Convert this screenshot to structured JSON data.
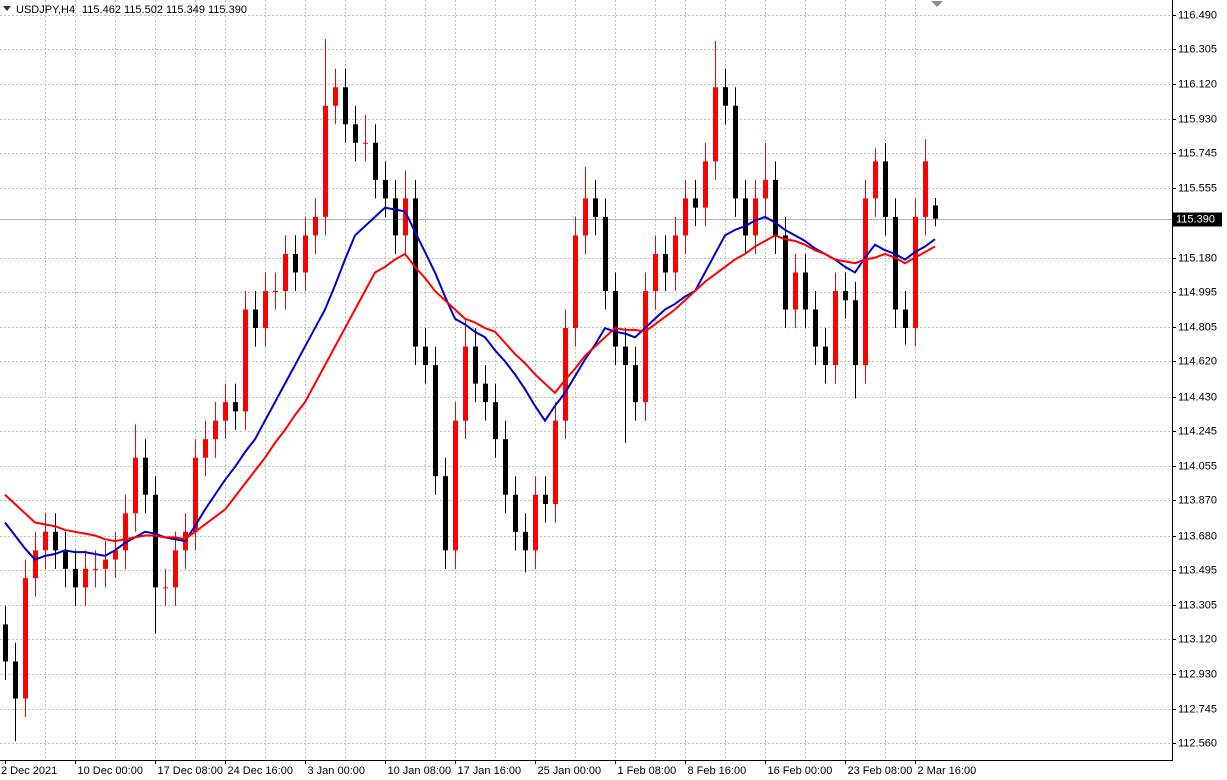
{
  "chart_data": {
    "type": "candlestick",
    "symbol": "USDJPY,H4",
    "header_values": [
      "115.462",
      "115.502",
      "115.349",
      "115.390"
    ],
    "up_color": "#ff0000",
    "down_color": "#000000",
    "ylim": [
      112.468,
      116.571
    ],
    "yticks": [
      {
        "value": 116.49,
        "label": "116.490"
      },
      116.305,
      {
        "value": 116.12,
        "label": "116.120"
      },
      {
        "value": 115.93,
        "label": "115.930"
      },
      115.745,
      115.555,
      {
        "value": 115.18,
        "label": "115.180"
      },
      114.995,
      114.805,
      {
        "value": 114.62,
        "label": "114.620"
      },
      {
        "value": 114.43,
        "label": "114.430"
      },
      114.245,
      114.055,
      {
        "value": 113.87,
        "label": "113.870"
      },
      {
        "value": 113.68,
        "label": "113.680"
      },
      113.495,
      113.305,
      {
        "value": 113.12,
        "label": "113.120"
      },
      {
        "value": 112.93,
        "label": "112.930"
      },
      112.745,
      {
        "value": 112.56,
        "label": "112.560"
      }
    ],
    "grid": true,
    "last_price": {
      "value": 115.39,
      "label": "115.390"
    },
    "categories": [
      "2 Dec 2021",
      null,
      null,
      null,
      null,
      null,
      null,
      "10 Dec 00:00",
      null,
      null,
      null,
      null,
      null,
      null,
      null,
      "17 Dec 08:00",
      null,
      null,
      null,
      null,
      null,
      null,
      "24 Dec 16:00",
      null,
      null,
      null,
      null,
      null,
      null,
      null,
      "3 Jan 00:00",
      null,
      null,
      null,
      null,
      null,
      null,
      null,
      "10 Jan 08:00",
      null,
      null,
      null,
      null,
      null,
      null,
      "17 Jan 16:00",
      null,
      null,
      null,
      null,
      null,
      null,
      null,
      "25 Jan 00:00",
      null,
      null,
      null,
      null,
      null,
      null,
      null,
      "1 Feb 08:00",
      null,
      null,
      null,
      null,
      null,
      null,
      "8 Feb 16:00",
      null,
      null,
      null,
      null,
      null,
      null,
      null,
      "16 Feb 00:00",
      null,
      null,
      null,
      null,
      null,
      null,
      null,
      "23 Feb 08:00",
      null,
      null,
      null,
      null,
      null,
      null,
      "2 Mar 16:00",
      null,
      null
    ],
    "ohlc": [
      [
        113.2,
        113.3,
        112.9,
        113.0
      ],
      [
        113.0,
        113.1,
        112.57,
        112.8
      ],
      [
        112.8,
        113.55,
        112.7,
        113.45
      ],
      [
        113.45,
        113.7,
        113.35,
        113.6
      ],
      [
        113.6,
        113.8,
        113.5,
        113.7
      ],
      [
        113.7,
        113.8,
        113.5,
        113.6
      ],
      [
        113.6,
        113.7,
        113.4,
        113.5
      ],
      [
        113.5,
        113.6,
        113.3,
        113.4
      ],
      [
        113.4,
        113.6,
        113.3,
        113.5
      ],
      [
        113.5,
        113.6,
        113.4,
        113.5
      ],
      [
        113.5,
        113.65,
        113.4,
        113.55
      ],
      [
        113.55,
        113.7,
        113.45,
        113.6
      ],
      [
        113.6,
        113.9,
        113.5,
        113.8
      ],
      [
        113.8,
        114.28,
        113.7,
        114.1
      ],
      [
        114.1,
        114.2,
        113.8,
        113.9
      ],
      [
        113.9,
        114.0,
        113.15,
        113.4
      ],
      [
        113.4,
        113.5,
        113.3,
        113.4
      ],
      [
        113.4,
        113.7,
        113.3,
        113.6
      ],
      [
        113.6,
        113.8,
        113.5,
        113.7
      ],
      [
        113.7,
        114.2,
        113.6,
        114.1
      ],
      [
        114.1,
        114.3,
        114.0,
        114.2
      ],
      [
        114.2,
        114.4,
        114.1,
        114.3
      ],
      [
        114.3,
        114.5,
        114.2,
        114.4
      ],
      [
        114.4,
        114.5,
        114.25,
        114.35
      ],
      [
        114.35,
        115.0,
        114.25,
        114.9
      ],
      [
        114.9,
        115.0,
        114.7,
        114.8
      ],
      [
        114.8,
        115.1,
        114.7,
        115.0
      ],
      [
        115.0,
        115.1,
        114.9,
        115.0
      ],
      [
        115.0,
        115.3,
        114.9,
        115.2
      ],
      [
        115.2,
        115.3,
        115.0,
        115.1
      ],
      [
        115.1,
        115.4,
        115.0,
        115.3
      ],
      [
        115.3,
        115.5,
        115.2,
        115.4
      ],
      [
        115.4,
        116.36,
        115.3,
        116.0
      ],
      [
        116.0,
        116.2,
        115.9,
        116.1
      ],
      [
        116.1,
        116.2,
        115.8,
        115.9
      ],
      [
        115.9,
        116.0,
        115.7,
        115.8
      ],
      [
        115.8,
        115.95,
        115.7,
        115.8
      ],
      [
        115.8,
        115.9,
        115.5,
        115.6
      ],
      [
        115.6,
        115.7,
        115.4,
        115.5
      ],
      [
        115.5,
        115.6,
        115.2,
        115.3
      ],
      [
        115.3,
        115.65,
        115.2,
        115.5
      ],
      [
        115.5,
        115.6,
        114.6,
        114.7
      ],
      [
        114.7,
        114.8,
        114.5,
        114.6
      ],
      [
        114.6,
        114.7,
        113.9,
        114.0
      ],
      [
        114.0,
        114.1,
        113.5,
        113.6
      ],
      [
        113.6,
        114.4,
        113.5,
        114.3
      ],
      [
        114.3,
        114.85,
        114.2,
        114.7
      ],
      [
        114.7,
        114.8,
        114.4,
        114.5
      ],
      [
        114.5,
        114.6,
        114.3,
        114.4
      ],
      [
        114.4,
        114.5,
        114.1,
        114.2
      ],
      [
        114.2,
        114.3,
        113.8,
        113.9
      ],
      [
        113.9,
        114.0,
        113.6,
        113.7
      ],
      [
        113.7,
        113.8,
        113.48,
        113.6
      ],
      [
        113.6,
        114.0,
        113.5,
        113.9
      ],
      [
        113.9,
        114.0,
        113.75,
        113.85
      ],
      [
        113.85,
        114.4,
        113.75,
        114.3
      ],
      [
        114.3,
        114.9,
        114.2,
        114.8
      ],
      [
        114.8,
        115.4,
        114.7,
        115.3
      ],
      [
        115.3,
        115.67,
        115.2,
        115.5
      ],
      [
        115.5,
        115.6,
        115.3,
        115.4
      ],
      [
        115.4,
        115.5,
        114.9,
        115.0
      ],
      [
        115.0,
        115.1,
        114.6,
        114.7
      ],
      [
        114.7,
        114.8,
        114.18,
        114.6
      ],
      [
        114.6,
        114.7,
        114.3,
        114.4
      ],
      [
        114.4,
        115.1,
        114.3,
        115.0
      ],
      [
        115.0,
        115.3,
        114.9,
        115.2
      ],
      [
        115.2,
        115.3,
        115.0,
        115.1
      ],
      [
        115.1,
        115.4,
        115.0,
        115.3
      ],
      [
        115.3,
        115.6,
        115.2,
        115.5
      ],
      [
        115.5,
        115.6,
        115.35,
        115.45
      ],
      [
        115.45,
        115.8,
        115.35,
        115.7
      ],
      [
        115.7,
        116.35,
        115.6,
        116.1
      ],
      [
        116.1,
        116.2,
        115.9,
        116.0
      ],
      [
        116.0,
        116.1,
        115.4,
        115.5
      ],
      [
        115.5,
        115.6,
        115.2,
        115.3
      ],
      [
        115.3,
        115.6,
        115.2,
        115.5
      ],
      [
        115.5,
        115.8,
        115.4,
        115.6
      ],
      [
        115.6,
        115.7,
        115.2,
        115.3
      ],
      [
        115.3,
        115.4,
        114.8,
        114.9
      ],
      [
        114.9,
        115.2,
        114.8,
        115.1
      ],
      [
        115.1,
        115.2,
        114.8,
        114.9
      ],
      [
        114.9,
        115.0,
        114.6,
        114.7
      ],
      [
        114.7,
        114.8,
        114.5,
        114.6
      ],
      [
        114.6,
        115.1,
        114.5,
        115.0
      ],
      [
        115.0,
        115.1,
        114.85,
        114.95
      ],
      [
        114.95,
        115.05,
        114.42,
        114.6
      ],
      [
        114.6,
        115.6,
        114.5,
        115.5
      ],
      [
        115.5,
        115.77,
        115.4,
        115.7
      ],
      [
        115.7,
        115.8,
        115.3,
        115.4
      ],
      [
        115.4,
        115.5,
        114.8,
        114.9
      ],
      [
        114.9,
        115.0,
        114.71,
        114.8
      ],
      [
        114.8,
        115.5,
        114.7,
        115.4
      ],
      [
        115.4,
        115.82,
        115.3,
        115.7
      ],
      [
        115.462,
        115.502,
        115.349,
        115.39
      ]
    ],
    "ma": [
      {
        "color": "#0000cc",
        "values": [
          113.75,
          113.68,
          113.61,
          113.55,
          113.57,
          113.58,
          113.6,
          113.59,
          113.59,
          113.58,
          113.57,
          113.6,
          113.64,
          113.67,
          113.7,
          113.69,
          113.67,
          113.66,
          113.65,
          113.73,
          113.82,
          113.9,
          113.98,
          114.05,
          114.13,
          114.2,
          114.3,
          114.4,
          114.5,
          114.6,
          114.7,
          114.8,
          114.9,
          115.03,
          115.17,
          115.3,
          115.35,
          115.4,
          115.45,
          115.44,
          115.43,
          115.32,
          115.21,
          115.1,
          114.97,
          114.85,
          114.82,
          114.78,
          114.75,
          114.68,
          114.62,
          114.55,
          114.47,
          114.38,
          114.3,
          114.38,
          114.45,
          114.54,
          114.63,
          114.71,
          114.8,
          114.78,
          114.77,
          114.75,
          114.8,
          114.85,
          114.9,
          114.93,
          114.97,
          115.0,
          115.1,
          115.2,
          115.3,
          115.33,
          115.35,
          115.38,
          115.4,
          115.37,
          115.33,
          115.3,
          115.27,
          115.23,
          115.2,
          115.17,
          115.13,
          115.1,
          115.18,
          115.25,
          115.22,
          115.2,
          115.17,
          115.21,
          115.24,
          115.28
        ]
      },
      {
        "color": "#ff0000",
        "values": [
          113.9,
          113.85,
          113.8,
          113.75,
          113.74,
          113.73,
          113.71,
          113.7,
          113.69,
          113.68,
          113.66,
          113.65,
          113.66,
          113.67,
          113.68,
          113.68,
          113.67,
          113.67,
          113.66,
          113.7,
          113.74,
          113.78,
          113.82,
          113.89,
          113.96,
          114.03,
          114.1,
          114.18,
          114.25,
          114.33,
          114.4,
          114.5,
          114.6,
          114.7,
          114.8,
          114.9,
          115.0,
          115.1,
          115.13,
          115.17,
          115.2,
          115.13,
          115.07,
          115.0,
          114.95,
          114.9,
          114.85,
          114.83,
          114.8,
          114.78,
          114.72,
          114.66,
          114.61,
          114.55,
          114.5,
          114.45,
          114.52,
          114.58,
          114.65,
          114.7,
          114.75,
          114.8,
          114.79,
          114.79,
          114.78,
          114.82,
          114.86,
          114.9,
          114.95,
          115.0,
          115.05,
          115.09,
          115.13,
          115.17,
          115.2,
          115.24,
          115.27,
          115.3,
          115.28,
          115.27,
          115.25,
          115.22,
          115.2,
          115.17,
          115.16,
          115.15,
          115.17,
          115.18,
          115.2,
          115.18,
          115.15,
          115.18,
          115.21,
          115.24
        ]
      }
    ]
  }
}
